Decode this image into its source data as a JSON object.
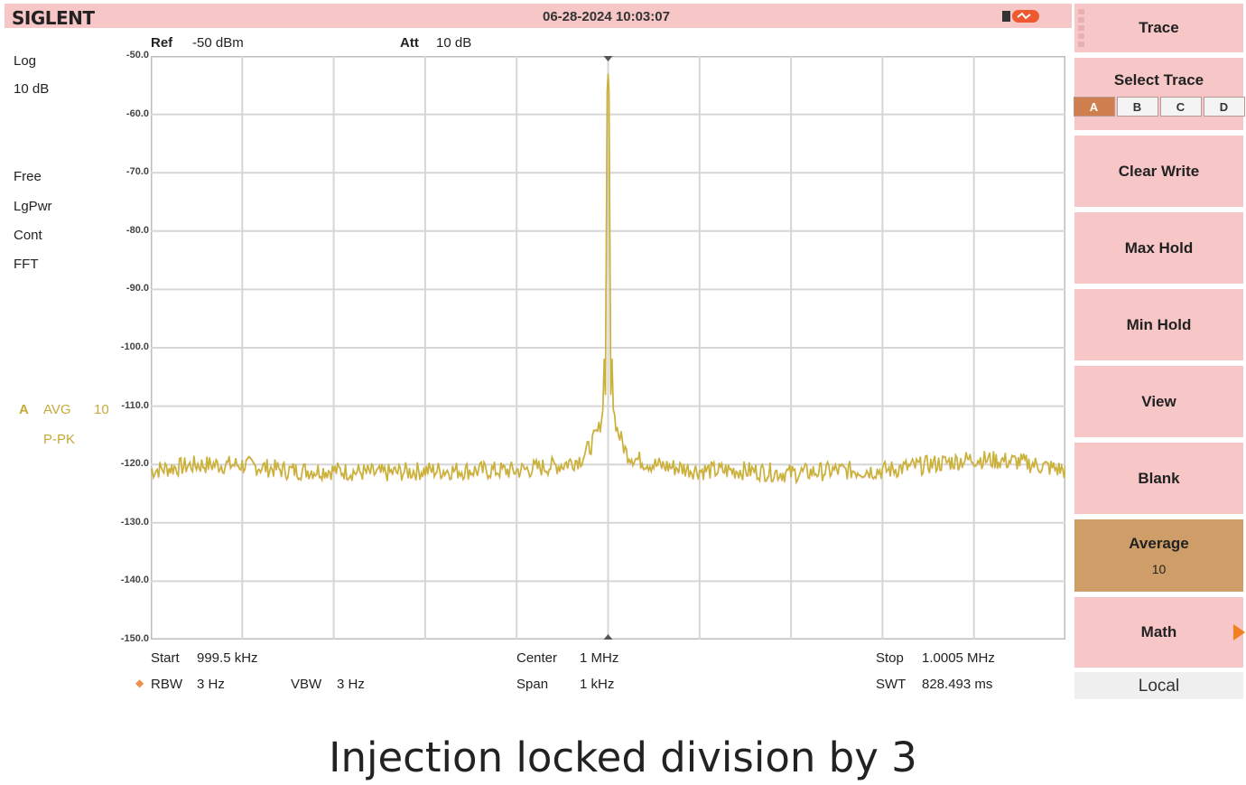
{
  "header": {
    "brand": "SIGLENT",
    "datetime": "06-28-2024 10:03:07",
    "battery_icon": "battery-icon"
  },
  "top_params": {
    "ref_label": "Ref",
    "ref_value": "-50 dBm",
    "att_label": "Att",
    "att_value": "10 dB"
  },
  "left_panel": {
    "scale_type": "Log",
    "scale_div": "10 dB",
    "modes": [
      "Free",
      "LgPwr",
      "Cont",
      "FFT"
    ],
    "trace_letter": "A",
    "trace_mode": "AVG",
    "trace_count": "10",
    "detector": "P-PK"
  },
  "bottom_params": {
    "start_label": "Start",
    "start_value": "999.5 kHz",
    "center_label": "Center",
    "center_value": "1 MHz",
    "stop_label": "Stop",
    "stop_value": "1.0005 MHz",
    "rbw_label": "RBW",
    "rbw_value": "3 Hz",
    "vbw_label": "VBW",
    "vbw_value": "3 Hz",
    "span_label": "Span",
    "span_value": "1 kHz",
    "swt_label": "SWT",
    "swt_value": "828.493 ms"
  },
  "sidebar": {
    "title": "Trace",
    "select_trace": "Select Trace",
    "trace_tabs": [
      "A",
      "B",
      "C",
      "D"
    ],
    "selected_tab": "A",
    "buttons": [
      {
        "label": "Clear Write"
      },
      {
        "label": "Max Hold"
      },
      {
        "label": "Min Hold"
      },
      {
        "label": "View"
      },
      {
        "label": "Blank"
      },
      {
        "label": "Average",
        "value": "10",
        "active": true
      },
      {
        "label": "Math"
      }
    ],
    "local": "Local"
  },
  "caption": "Injection locked division by 3",
  "colors": {
    "trace": "#c8b238",
    "trace_hi": "#f0a878",
    "panel": "#f7c6c6",
    "active": "#cf9e68"
  },
  "chart_data": {
    "type": "line",
    "x_unit": "kHz",
    "xlim": [
      999.5,
      1000.5
    ],
    "ylim": [
      -150,
      -50
    ],
    "yticks": [
      "-50.0",
      "-60.0",
      "-70.0",
      "-80.0",
      "-90.0",
      "-100.0",
      "-110.0",
      "-120.0",
      "-130.0",
      "-140.0",
      "-150.0"
    ],
    "grid": true,
    "series": [
      {
        "x": [
          999.5,
          999.55,
          999.6,
          999.65,
          999.7,
          999.75,
          999.8,
          999.85,
          999.9,
          999.95,
          999.97,
          999.98,
          999.99,
          999.995,
          1000.0,
          1000.005,
          1000.01,
          1000.02,
          1000.03,
          1000.05,
          1000.1,
          1000.15,
          1000.2,
          1000.25,
          1000.3,
          1000.35,
          1000.4,
          1000.45,
          1000.5
        ],
        "y": [
          -121,
          -120,
          -120,
          -121,
          -121,
          -121.5,
          -121,
          -121,
          -121,
          -120,
          -119,
          -117,
          -114,
          -110,
          -53,
          -110,
          -114,
          -118,
          -119,
          -120,
          -121,
          -121,
          -121.5,
          -121,
          -121,
          -120,
          -119,
          -119.5,
          -121
        ]
      }
    ]
  }
}
